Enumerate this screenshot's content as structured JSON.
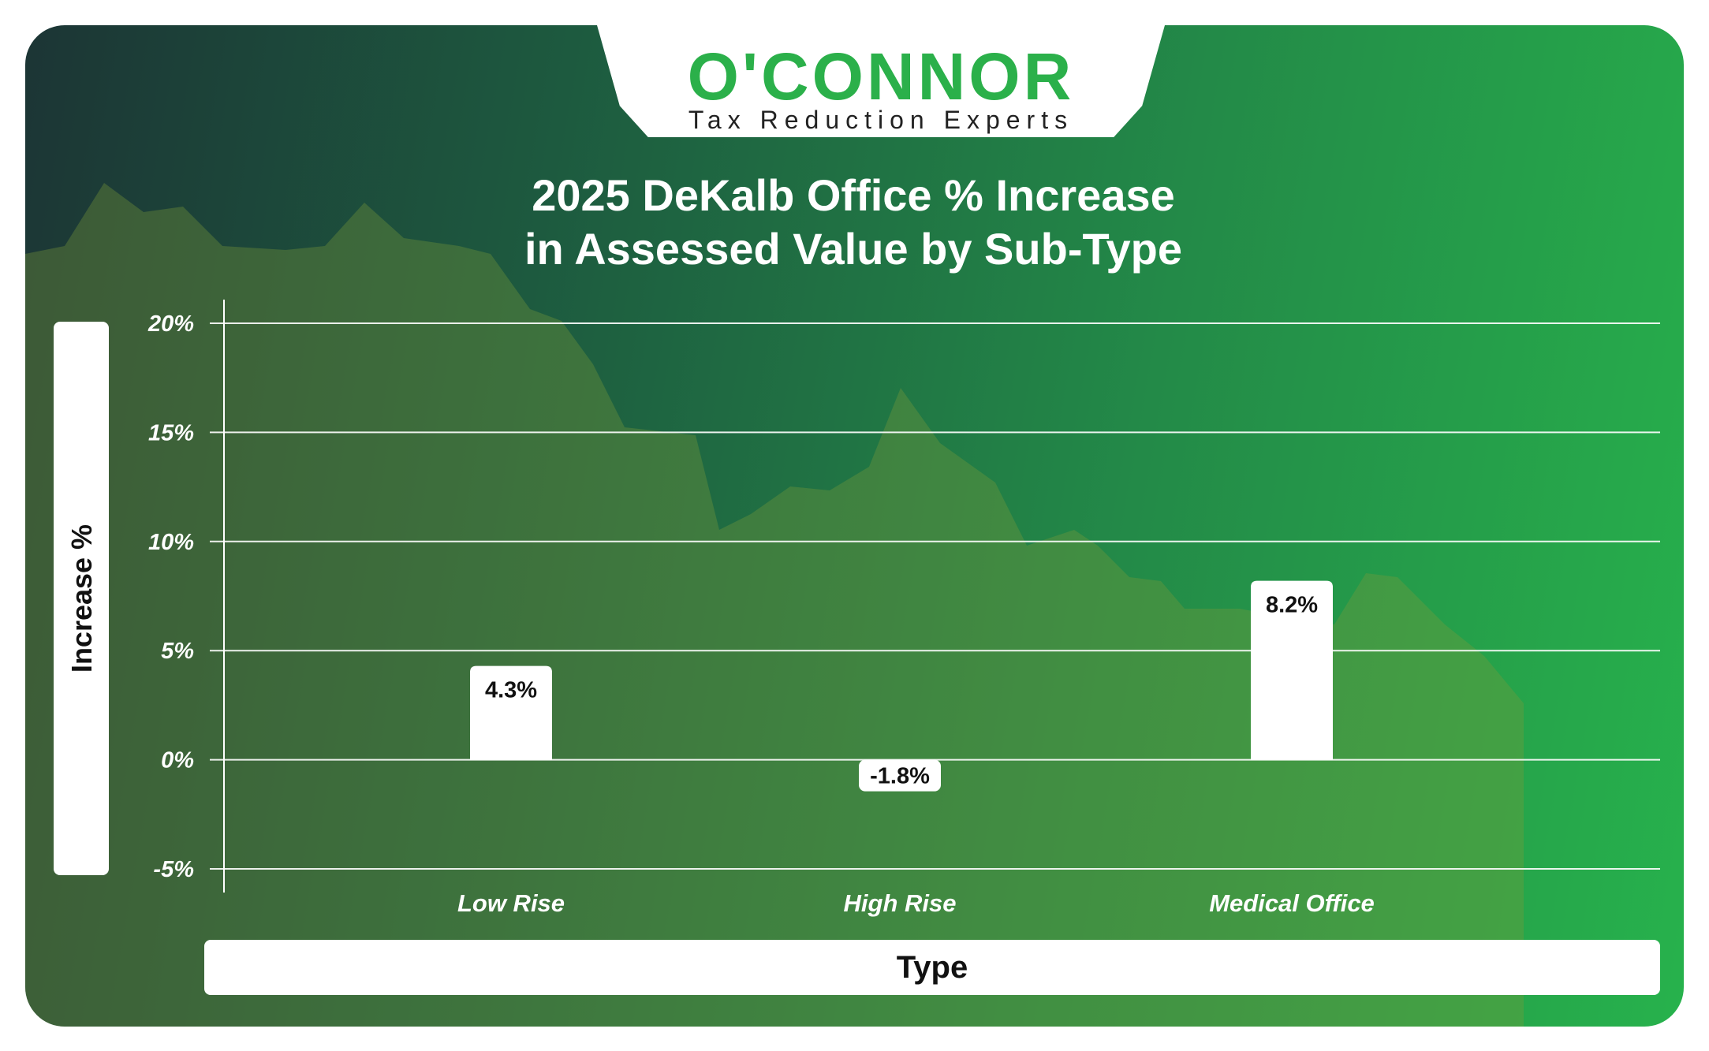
{
  "brand": {
    "name": "O'CONNOR",
    "tagline": "Tax Reduction Experts",
    "color": "#2bb04a"
  },
  "chart_data": {
    "type": "bar",
    "title_line1": "2025 DeKalb Office % Increase",
    "title_line2": "in Assessed Value by Sub-Type",
    "xlabel": "Type",
    "ylabel": "Increase %",
    "categories": [
      "Low Rise",
      "High Rise",
      "Medical Office"
    ],
    "values": [
      4.3,
      -1.8,
      8.2
    ],
    "data_labels": [
      "4.3%",
      "-1.8%",
      "8.2%"
    ],
    "ylim": [
      -5,
      20
    ],
    "yticks": [
      20,
      15,
      10,
      5,
      0,
      -5
    ],
    "ytick_labels": [
      "20%",
      "15%",
      "10%",
      "5%",
      "0%",
      "-5%"
    ],
    "grid": true,
    "bar_color": "#ffffff"
  }
}
